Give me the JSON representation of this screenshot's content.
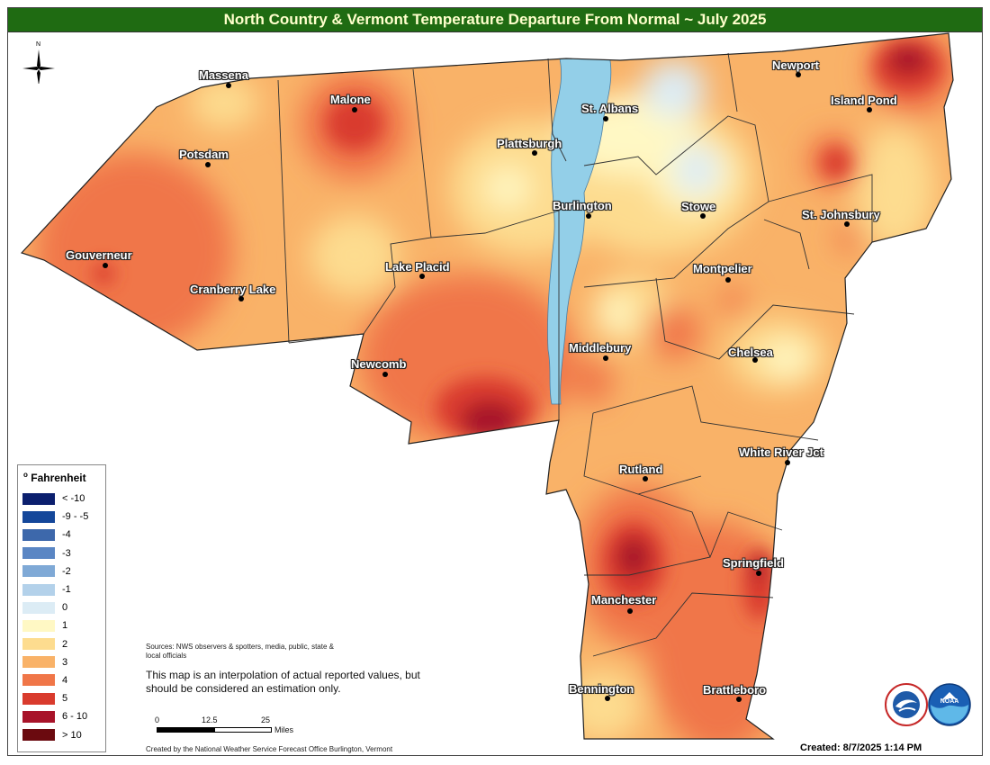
{
  "title": "North Country & Vermont Temperature Departure From Normal ~ July 2025",
  "north_label": "N",
  "cities": [
    {
      "name": "Massena"
    },
    {
      "name": "Malone"
    },
    {
      "name": "Potsdam"
    },
    {
      "name": "Gouverneur"
    },
    {
      "name": "Cranberry Lake"
    },
    {
      "name": "Lake Placid"
    },
    {
      "name": "Newcomb"
    },
    {
      "name": "Plattsburgh"
    },
    {
      "name": "St. Albans"
    },
    {
      "name": "Burlington"
    },
    {
      "name": "Stowe"
    },
    {
      "name": "Newport"
    },
    {
      "name": "Island Pond"
    },
    {
      "name": "St. Johnsbury"
    },
    {
      "name": "Montpelier"
    },
    {
      "name": "Middlebury"
    },
    {
      "name": "Chelsea"
    },
    {
      "name": "White River Jct"
    },
    {
      "name": "Rutland"
    },
    {
      "name": "Springfield"
    },
    {
      "name": "Manchester"
    },
    {
      "name": "Bennington"
    },
    {
      "name": "Brattleboro"
    }
  ],
  "legend": {
    "title": "o Fahrenheit",
    "title_sup": "o",
    "title_text": "Fahrenheit",
    "items": [
      {
        "label": "< -10",
        "color": "#0b1f6e"
      },
      {
        "label": "-9 - -5",
        "color": "#14479a"
      },
      {
        "label": "-4",
        "color": "#3d68ab"
      },
      {
        "label": "-3",
        "color": "#5a86c4"
      },
      {
        "label": "-2",
        "color": "#7fa9d6"
      },
      {
        "label": "-1",
        "color": "#b3d1ea"
      },
      {
        "label": "0",
        "color": "#dcecf5"
      },
      {
        "label": "1",
        "color": "#fff8c4"
      },
      {
        "label": "2",
        "color": "#fddc8f"
      },
      {
        "label": "3",
        "color": "#f9b268"
      },
      {
        "label": "4",
        "color": "#f07648"
      },
      {
        "label": "5",
        "color": "#d93b2d"
      },
      {
        "label": "6 - 10",
        "color": "#a81329"
      },
      {
        "label": "> 10",
        "color": "#6b0a0f"
      }
    ]
  },
  "sources": "Sources: NWS observers & spotters, media, public, state & local officials",
  "note": "This map is an interpolation of actual reported values, but should be considered an estimation only.",
  "scale": {
    "t0": "0",
    "t1": "12.5",
    "t2": "25",
    "unit": "Miles"
  },
  "credit": "Created by the National Weather Service Forecast Office Burlington, Vermont",
  "created": "Created:  8/7/2025 1:14 PM",
  "logos": {
    "nws": "NATIONAL WEATHER SERVICE",
    "noaa": "NOAA"
  },
  "colors": {
    "title_bg": "#1f6b12",
    "title_text": "#ffffcc",
    "water": "#93cfe8"
  }
}
